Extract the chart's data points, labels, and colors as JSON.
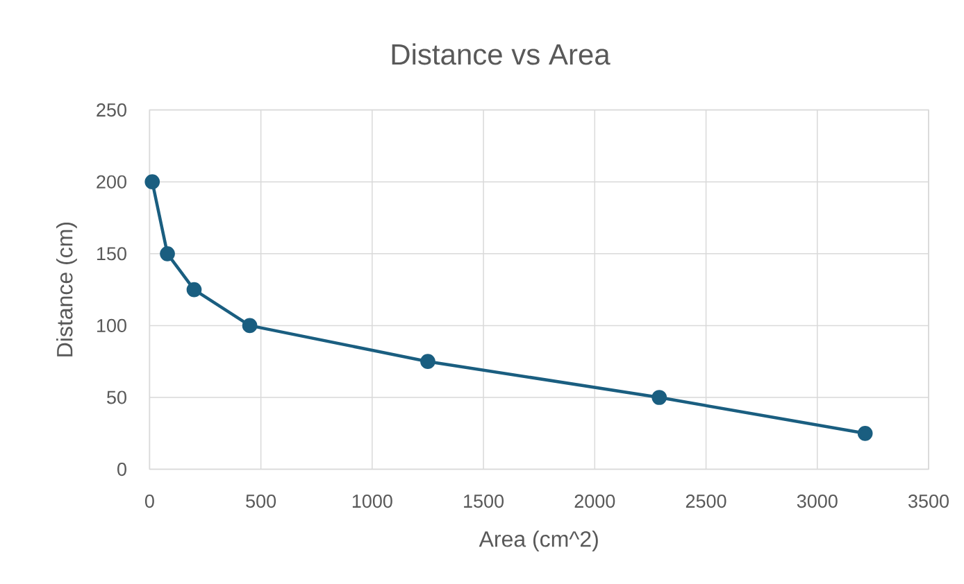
{
  "chart_data": {
    "type": "line",
    "title": "Distance vs Area",
    "xlabel": "Area (cm^2)",
    "ylabel": "Distance (cm)",
    "x": [
      12,
      80,
      200,
      450,
      1250,
      2290,
      3215
    ],
    "series": [
      {
        "color": "#1a5e80",
        "values": [
          200,
          150,
          125,
          100,
          75,
          50,
          25
        ]
      }
    ],
    "xlim": [
      0,
      3500
    ],
    "xticks": [
      0,
      500,
      1000,
      1500,
      2000,
      2500,
      3000,
      3500
    ],
    "ylim": [
      0,
      250
    ],
    "yticks": [
      0,
      50,
      100,
      150,
      200,
      250
    ],
    "grid": true,
    "marker": "circle",
    "line_style": "solid"
  }
}
